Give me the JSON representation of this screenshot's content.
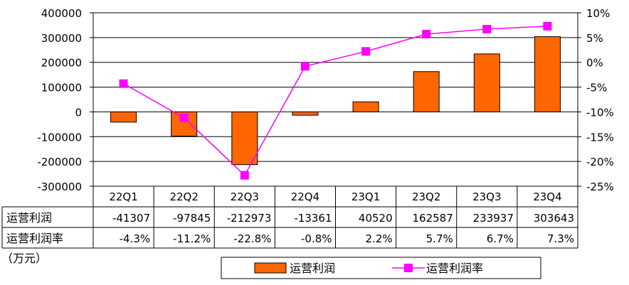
{
  "chart_data": {
    "type": "bar",
    "categories": [
      "22Q1",
      "22Q2",
      "22Q3",
      "22Q4",
      "23Q1",
      "23Q2",
      "23Q3",
      "23Q4"
    ],
    "series": [
      {
        "name": "运营利润",
        "type": "bar",
        "axis": "left",
        "values": [
          -41307,
          -97845,
          -212973,
          -13361,
          40520,
          162587,
          233937,
          303643
        ],
        "labels": [
          "-41307",
          "-97845",
          "-212973",
          "-13361",
          "40520",
          "162587",
          "233937",
          "303643"
        ]
      },
      {
        "name": "运营利润率",
        "type": "line",
        "axis": "right",
        "values": [
          -4.3,
          -11.2,
          -22.8,
          -0.8,
          2.2,
          5.7,
          6.7,
          7.3
        ],
        "labels": [
          "-4.3%",
          "-11.2%",
          "-22.8%",
          "-0.8%",
          "2.2%",
          "5.7%",
          "6.7%",
          "7.3%"
        ]
      }
    ],
    "y_left": {
      "ylim": [
        -300000,
        400000
      ],
      "ticks": [
        "400000",
        "300000",
        "200000",
        "100000",
        "0",
        "-100000",
        "-200000",
        "-300000"
      ]
    },
    "y_right": {
      "ylim": [
        -25,
        10
      ],
      "ticks": [
        "10%",
        "5%",
        "0%",
        "-5%",
        "-10%",
        "-15%",
        "-20%",
        "-25%"
      ]
    },
    "table_headers": [
      "运营利润",
      "运营利润率"
    ],
    "unit": "（万元）",
    "legend": [
      "运营利润",
      "运营利润率"
    ],
    "grid": true,
    "legend_position": "bottom",
    "colors": {
      "bar": "#ff6600",
      "line": "#ff00ff",
      "axis": "#000000"
    }
  }
}
